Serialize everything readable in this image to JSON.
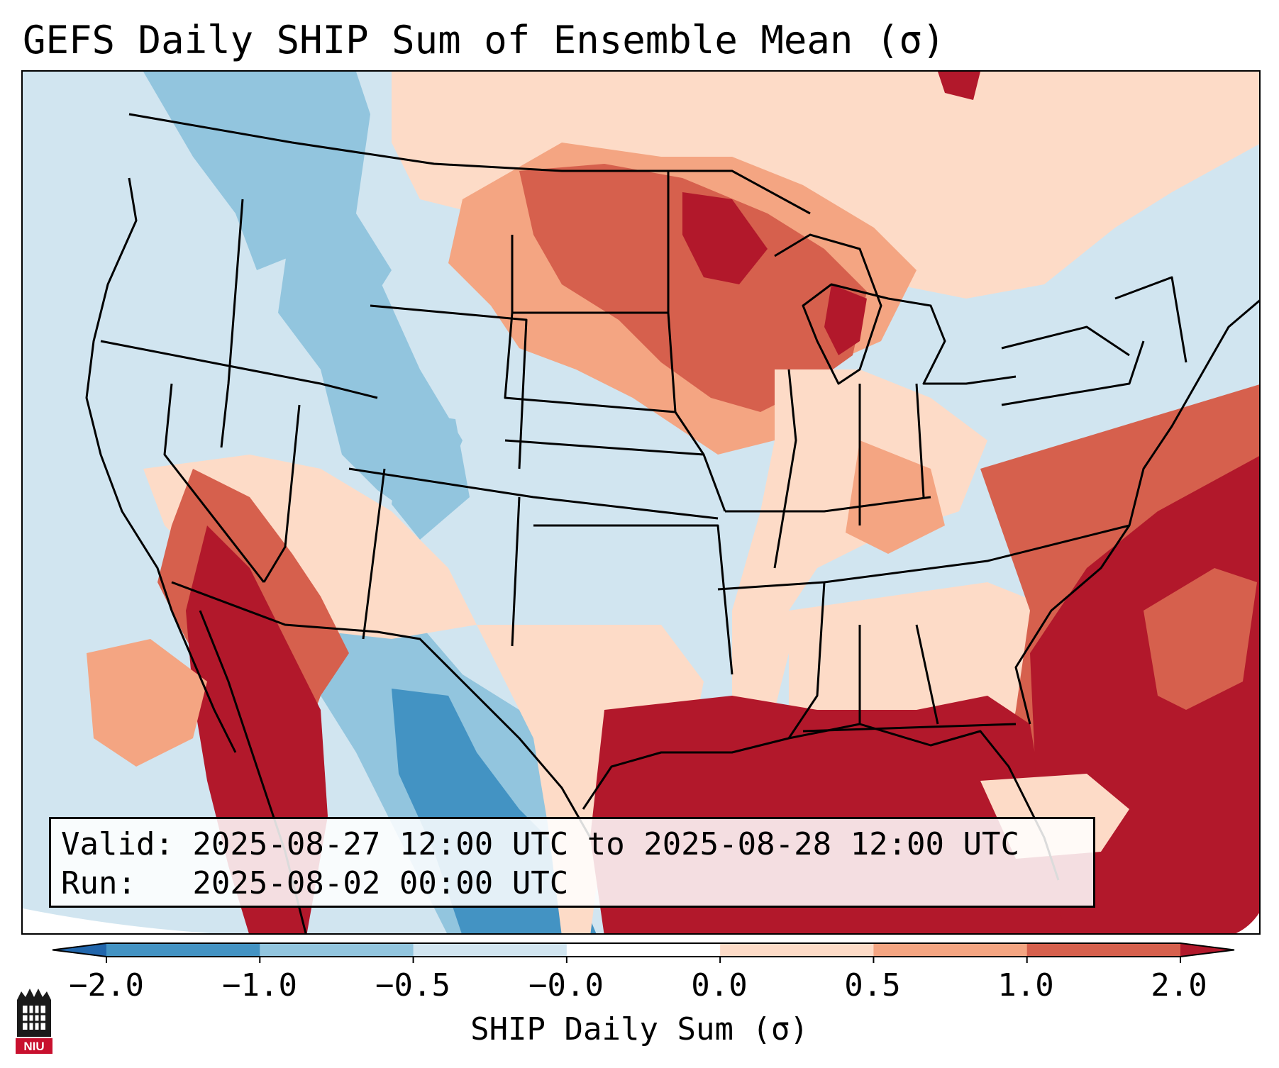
{
  "title": "GEFS Daily SHIP Sum of Ensemble Mean (σ)",
  "info": {
    "valid": "Valid: 2025-08-27 12:00 UTC to 2025-08-28 12:00 UTC",
    "run": "Run:   2025-08-02 00:00 UTC"
  },
  "colorbar": {
    "label": "SHIP Daily Sum (σ)",
    "ticks": [
      "−2.0",
      "−1.0",
      "−0.5",
      "−0.0",
      "0.0",
      "0.5",
      "1.0",
      "2.0"
    ],
    "colors": [
      "#2166ac",
      "#4393c3",
      "#92c5de",
      "#d1e5f0",
      "#ffffff",
      "#fddbc7",
      "#f4a582",
      "#d6604d",
      "#b2182b"
    ]
  },
  "map_regions": [
    {
      "name": "pacific-northwest",
      "level": "-0.5 to -1.0",
      "color": "#92c5de"
    },
    {
      "name": "southern-rockies",
      "level": "-1.0 to -2.0",
      "color": "#4393c3"
    },
    {
      "name": "upper-midwest",
      "level": "1.0 to 2.0",
      "color": "#d6604d"
    },
    {
      "name": "gulf-and-atlantic",
      "level": "> 2.0",
      "color": "#b2182b"
    },
    {
      "name": "southwest-mexico",
      "level": "> 2.0",
      "color": "#b2182b"
    }
  ],
  "logo": {
    "text": "NIU"
  }
}
